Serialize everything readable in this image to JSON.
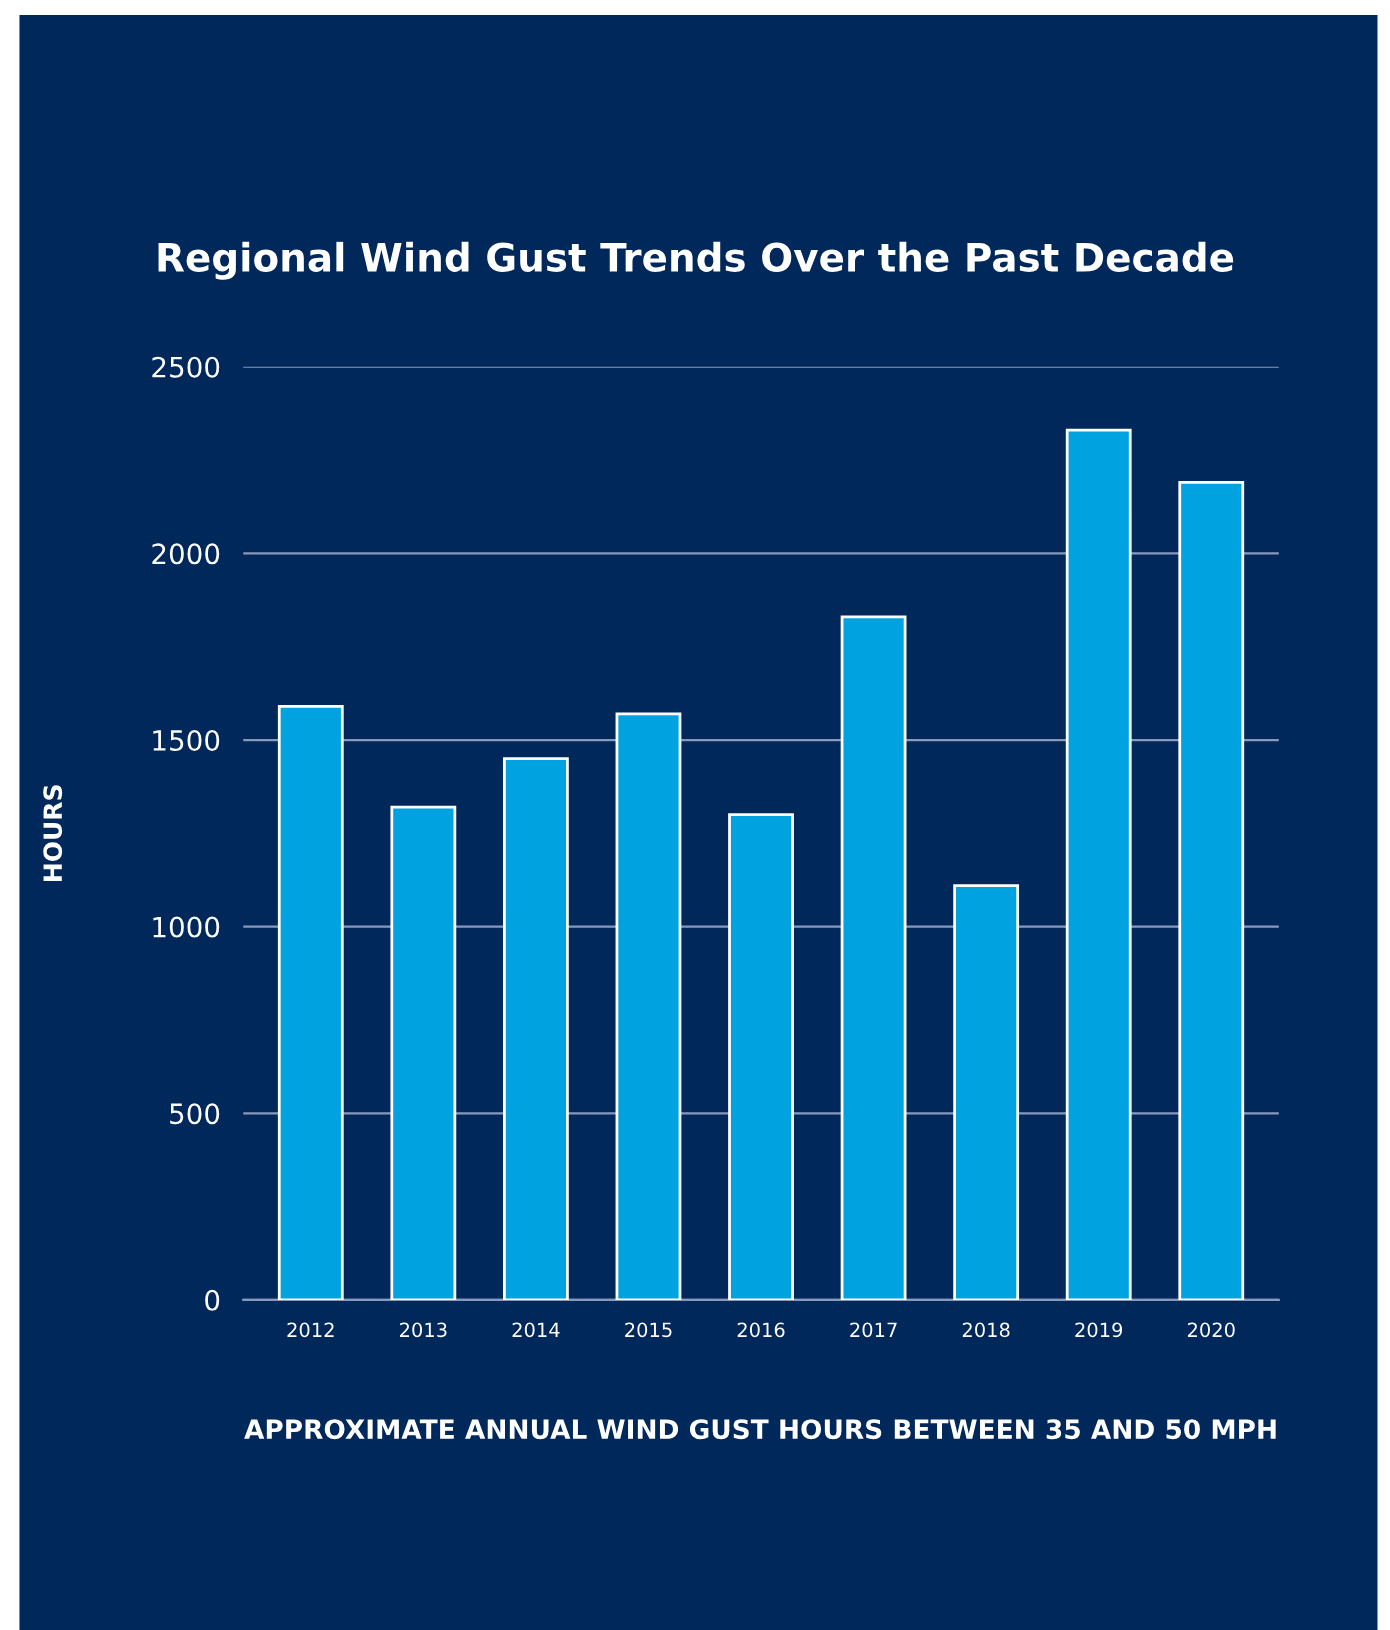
{
  "chart_data": {
    "type": "bar",
    "title": "Regional Wind Gust Trends Over the Past Decade",
    "xlabel": "APPROXIMATE ANNUAL WIND GUST HOURS BETWEEN 35 AND 50 MPH",
    "ylabel": "HOURS",
    "categories": [
      "2012",
      "2013",
      "2014",
      "2015",
      "2016",
      "2017",
      "2018",
      "2019",
      "2020"
    ],
    "values": [
      1590,
      1320,
      1450,
      1570,
      1300,
      1830,
      1110,
      2330,
      2190
    ],
    "color": "#00a3e0",
    "ylim": [
      0,
      2500
    ],
    "yticks": [
      0,
      500,
      1000,
      1500,
      2000,
      2500
    ],
    "grid": "y",
    "legend": false
  }
}
